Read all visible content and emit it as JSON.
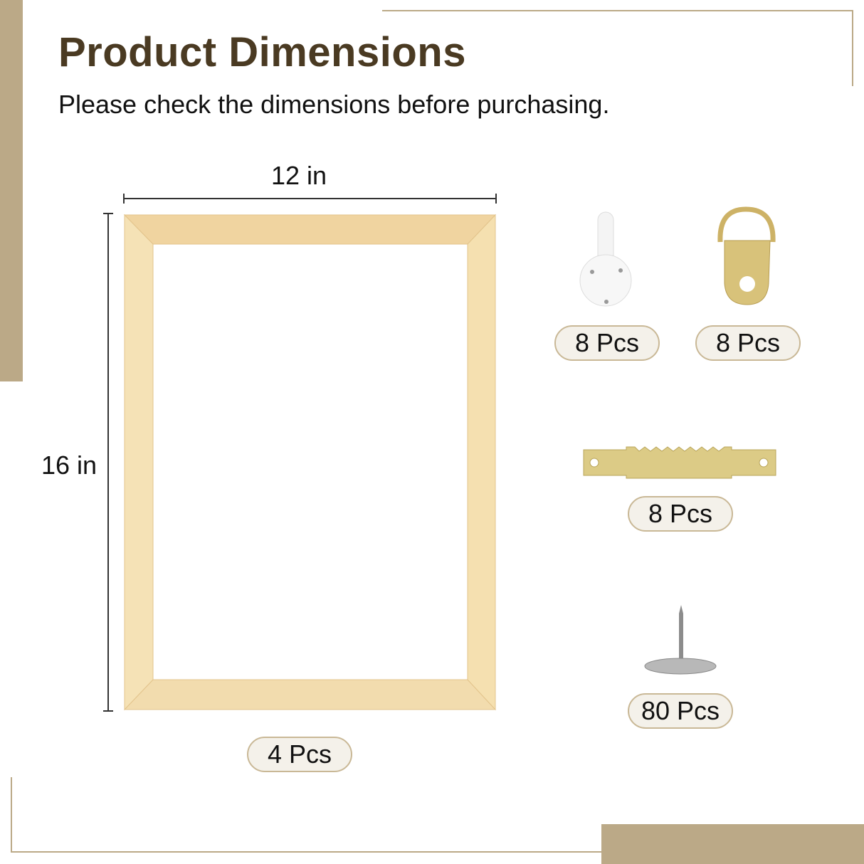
{
  "header": {
    "title": "Product Dimensions",
    "subtitle": "Please check the dimensions before purchasing."
  },
  "frame": {
    "width_label": "12 in",
    "height_label": "16 in",
    "quantity": "4 Pcs"
  },
  "accessories": [
    {
      "icon": "plastic-wall-hook-icon",
      "quantity": "8 Pcs"
    },
    {
      "icon": "d-ring-hanger-icon",
      "quantity": "8 Pcs"
    },
    {
      "icon": "sawtooth-hanger-icon",
      "quantity": "8 Pcs"
    },
    {
      "icon": "push-pin-nail-icon",
      "quantity": "80 Pcs"
    }
  ],
  "colors": {
    "accent_tan": "#bba987",
    "title_brown": "#4a3a22",
    "wood": "#f0d9a6",
    "brass": "#d8c27a"
  }
}
